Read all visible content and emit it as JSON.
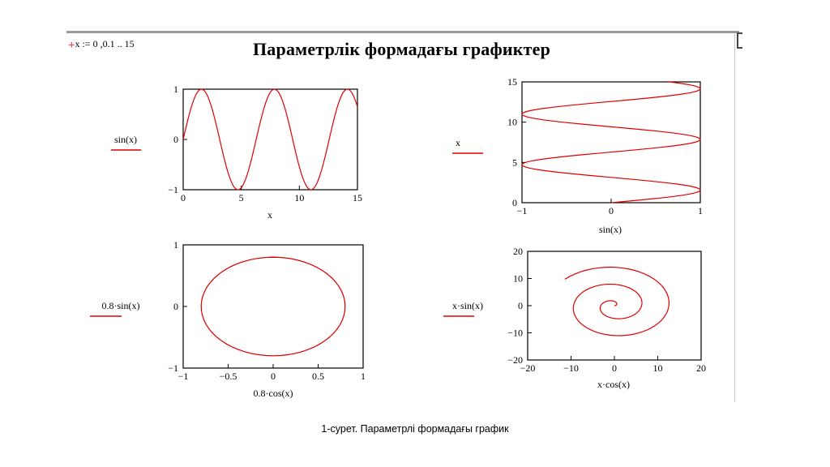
{
  "header": {
    "range_definition": "x := 0 ,0.1 .. 15",
    "title": "Параметрлік формадағы графиктер"
  },
  "caption": "1-сурет. Параметрлі формадағы график",
  "colors": {
    "trace": "#e00000",
    "marker": "#e00000",
    "frame": "#000000"
  },
  "chart_data": [
    {
      "type": "line",
      "id": "p1",
      "title": "",
      "x_expression": "x",
      "y_expression": "sin(x)",
      "xlabel": "x",
      "ylabel": "sin(x)",
      "xlim": [
        0,
        15
      ],
      "ylim": [
        -1,
        1
      ],
      "xticks": [
        0,
        5,
        10,
        15
      ],
      "yticks": [
        -1,
        0,
        1
      ],
      "t_range": [
        0,
        15,
        0.1
      ],
      "grid": false
    },
    {
      "type": "line",
      "id": "p2",
      "title": "",
      "x_expression": "sin(x)",
      "y_expression": "x",
      "xlabel": "sin(x)",
      "ylabel": "x",
      "xlim": [
        -1,
        1
      ],
      "ylim": [
        0,
        15
      ],
      "xticks": [
        -1,
        0,
        1
      ],
      "yticks": [
        0,
        5,
        10,
        15
      ],
      "t_range": [
        0,
        15,
        0.1
      ],
      "grid": false
    },
    {
      "type": "line",
      "id": "p3",
      "title": "",
      "x_expression": "0.8·cos(x)",
      "y_expression": "0.8·sin(x)",
      "xlabel": "0.8·cos(x)",
      "ylabel": "0.8·sin(x)",
      "xlim": [
        -1,
        1
      ],
      "ylim": [
        -1,
        1
      ],
      "xticks": [
        -1,
        -0.5,
        0,
        0.5,
        1
      ],
      "yticks": [
        -1,
        0,
        1
      ],
      "t_range": [
        0,
        15,
        0.1
      ],
      "grid": false
    },
    {
      "type": "line",
      "id": "p4",
      "title": "",
      "x_expression": "x·cos(x)",
      "y_expression": "x·sin(x)",
      "xlabel": "x·cos(x)",
      "ylabel": "x·sin(x)",
      "xlim": [
        -20,
        20
      ],
      "ylim": [
        -20,
        20
      ],
      "xticks": [
        -20,
        -10,
        0,
        10,
        20
      ],
      "yticks": [
        -20,
        -10,
        0,
        10,
        20
      ],
      "t_range": [
        0,
        15,
        0.1
      ],
      "grid": false
    }
  ]
}
